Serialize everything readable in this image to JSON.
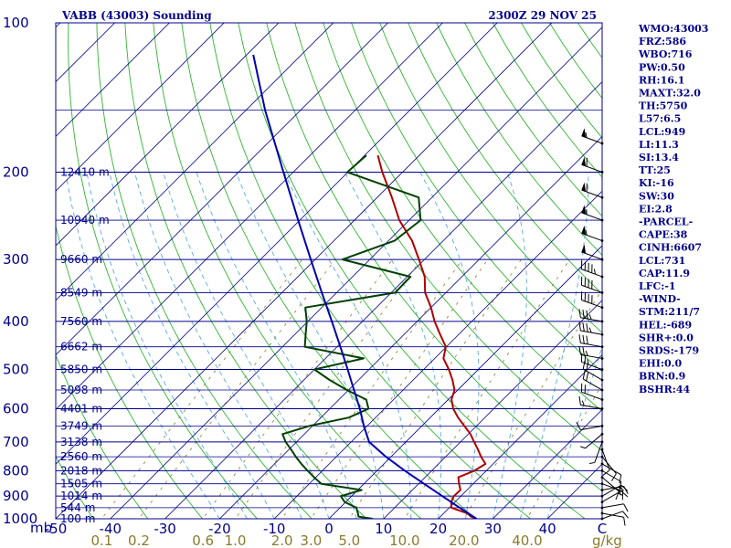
{
  "header": {
    "title": "VABB (43003) Sounding",
    "datetime": "2300Z 29 NOV 25"
  },
  "chart_data": {
    "type": "line",
    "title": "VABB (43003) Sounding",
    "pressure_unit": "mb",
    "pressure_axis": "log",
    "temperature_unit": "C",
    "mixing_ratio_unit": "g/kg",
    "temperature_range": [
      -50,
      50
    ],
    "pressure_range": [
      1000,
      100
    ],
    "pressure_ticks": [
      1000,
      900,
      800,
      700,
      600,
      500,
      400,
      300,
      200,
      100
    ],
    "pressure_tick_labels": [
      "1000",
      "900",
      "800",
      "700",
      "600",
      "500",
      "400",
      "300",
      "200",
      "100"
    ],
    "temperature_ticks": [
      -50,
      -40,
      -30,
      -20,
      -10,
      0,
      10,
      20,
      30,
      40
    ],
    "temperature_tick_labels": [
      "-50",
      "-40",
      "-30",
      "-20",
      "-10",
      "0",
      "10",
      "20",
      "30",
      "40"
    ],
    "mixing_ratio_ticks": [
      0.1,
      0.2,
      0.6,
      1.0,
      2.0,
      3.0,
      5.0,
      10.0,
      20.0,
      40.0
    ],
    "mixing_ratio_tick_labels": [
      "0.1",
      "0.2",
      "0.6",
      "1.0",
      "2.0",
      "3.0",
      "5.0",
      "10.0",
      "20.0",
      "40.0"
    ],
    "height_labels": [
      {
        "p": 1000,
        "label": "100 m"
      },
      {
        "p": 950,
        "label": "544 m"
      },
      {
        "p": 900,
        "label": "1014 m"
      },
      {
        "p": 850,
        "label": "1505 m"
      },
      {
        "p": 800,
        "label": "2018 m"
      },
      {
        "p": 750,
        "label": "2560 m"
      },
      {
        "p": 700,
        "label": "3138 m"
      },
      {
        "p": 650,
        "label": "3749 m"
      },
      {
        "p": 600,
        "label": "4401 m"
      },
      {
        "p": 550,
        "label": "5098 m"
      },
      {
        "p": 500,
        "label": "5850 m"
      },
      {
        "p": 450,
        "label": "6662 m"
      },
      {
        "p": 400,
        "label": "7560 m"
      },
      {
        "p": 350,
        "label": "8549 m"
      },
      {
        "p": 300,
        "label": "9660 m"
      },
      {
        "p": 250,
        "label": "10940 m"
      },
      {
        "p": 200,
        "label": "12410 m"
      }
    ],
    "series": [
      {
        "name": "Temperature",
        "color": "#b00000",
        "points": [
          {
            "p": 1000,
            "t": 27.0
          },
          {
            "p": 990,
            "t": 25.6
          },
          {
            "p": 975,
            "t": 24.3
          },
          {
            "p": 950,
            "t": 20.4
          },
          {
            "p": 925,
            "t": 19.3
          },
          {
            "p": 900,
            "t": 18.7
          },
          {
            "p": 875,
            "t": 18.8
          },
          {
            "p": 850,
            "t": 17.4
          },
          {
            "p": 825,
            "t": 16.1
          },
          {
            "p": 800,
            "t": 17.8
          },
          {
            "p": 775,
            "t": 18.6
          },
          {
            "p": 750,
            "t": 16.5
          },
          {
            "p": 725,
            "t": 14.6
          },
          {
            "p": 700,
            "t": 12.5
          },
          {
            "p": 675,
            "t": 10.4
          },
          {
            "p": 650,
            "t": 7.8
          },
          {
            "p": 625,
            "t": 5.1
          },
          {
            "p": 600,
            "t": 2.6
          },
          {
            "p": 575,
            "t": 0.6
          },
          {
            "p": 550,
            "t": -0.6
          },
          {
            "p": 525,
            "t": -2.8
          },
          {
            "p": 500,
            "t": -5.4
          },
          {
            "p": 475,
            "t": -8.4
          },
          {
            "p": 450,
            "t": -10.1
          },
          {
            "p": 425,
            "t": -13.4
          },
          {
            "p": 400,
            "t": -16.8
          },
          {
            "p": 375,
            "t": -20.0
          },
          {
            "p": 350,
            "t": -23.8
          },
          {
            "p": 325,
            "t": -26.8
          },
          {
            "p": 300,
            "t": -31.0
          },
          {
            "p": 275,
            "t": -35.7
          },
          {
            "p": 250,
            "t": -41.8
          },
          {
            "p": 225,
            "t": -47.3
          },
          {
            "p": 200,
            "t": -53.7
          },
          {
            "p": 185,
            "t": -57.6
          }
        ]
      },
      {
        "name": "Dewpoint",
        "color": "#004000",
        "points": [
          {
            "p": 1000,
            "t": 8.0
          },
          {
            "p": 990,
            "t": 5.0
          },
          {
            "p": 975,
            "t": 4.3
          },
          {
            "p": 950,
            "t": 3.0
          },
          {
            "p": 925,
            "t": -0.2
          },
          {
            "p": 900,
            "t": -2.0
          },
          {
            "p": 875,
            "t": 0.7
          },
          {
            "p": 850,
            "t": -7.8
          },
          {
            "p": 825,
            "t": -10.3
          },
          {
            "p": 800,
            "t": -12.7
          },
          {
            "p": 775,
            "t": -15.1
          },
          {
            "p": 750,
            "t": -17.4
          },
          {
            "p": 725,
            "t": -19.6
          },
          {
            "p": 700,
            "t": -22.0
          },
          {
            "p": 675,
            "t": -24.0
          },
          {
            "p": 650,
            "t": -20.6
          },
          {
            "p": 625,
            "t": -14.9
          },
          {
            "p": 600,
            "t": -12.9
          },
          {
            "p": 575,
            "t": -15.0
          },
          {
            "p": 550,
            "t": -20.3
          },
          {
            "p": 525,
            "t": -25.3
          },
          {
            "p": 500,
            "t": -30.0
          },
          {
            "p": 475,
            "t": -23.0
          },
          {
            "p": 450,
            "t": -35.9
          },
          {
            "p": 425,
            "t": -38.0
          },
          {
            "p": 400,
            "t": -40.2
          },
          {
            "p": 375,
            "t": -43.0
          },
          {
            "p": 350,
            "t": -29.3
          },
          {
            "p": 325,
            "t": -29.4
          },
          {
            "p": 300,
            "t": -45.0
          },
          {
            "p": 275,
            "t": -38.9
          },
          {
            "p": 250,
            "t": -37.9
          },
          {
            "p": 225,
            "t": -42.4
          },
          {
            "p": 200,
            "t": -60.1
          },
          {
            "p": 185,
            "t": -59.7
          }
        ]
      },
      {
        "name": "Parcel",
        "color": "#0000b0",
        "points": [
          {
            "p": 1000,
            "t": 27.0
          },
          {
            "p": 950,
            "t": 21.9
          },
          {
            "p": 900,
            "t": 16.6
          },
          {
            "p": 850,
            "t": 11.0
          },
          {
            "p": 800,
            "t": 5.1
          },
          {
            "p": 750,
            "t": -0.9
          },
          {
            "p": 700,
            "t": -6.7
          },
          {
            "p": 650,
            "t": -10.6
          },
          {
            "p": 600,
            "t": -14.5
          },
          {
            "p": 550,
            "t": -19.0
          },
          {
            "p": 500,
            "t": -23.9
          },
          {
            "p": 450,
            "t": -29.4
          },
          {
            "p": 400,
            "t": -35.6
          },
          {
            "p": 350,
            "t": -42.7
          },
          {
            "p": 300,
            "t": -50.8
          },
          {
            "p": 250,
            "t": -60.3
          },
          {
            "p": 200,
            "t": -71.8
          },
          {
            "p": 150,
            "t": -86.5
          },
          {
            "p": 116,
            "t": -98.8
          }
        ]
      }
    ],
    "wind_barbs": [
      {
        "p": 1000,
        "dir": 70,
        "spd": 10
      },
      {
        "p": 975,
        "dir": 100,
        "spd": 10
      },
      {
        "p": 950,
        "dir": 80,
        "spd": 10
      },
      {
        "p": 925,
        "dir": 60,
        "spd": 15
      },
      {
        "p": 900,
        "dir": 60,
        "spd": 15
      },
      {
        "p": 875,
        "dir": 80,
        "spd": 15
      },
      {
        "p": 850,
        "dir": 110,
        "spd": 15
      },
      {
        "p": 825,
        "dir": 130,
        "spd": 10
      },
      {
        "p": 800,
        "dir": 120,
        "spd": 10
      },
      {
        "p": 775,
        "dir": 120,
        "spd": 10
      },
      {
        "p": 750,
        "dir": 140,
        "spd": 10
      },
      {
        "p": 725,
        "dir": 160,
        "spd": 10
      },
      {
        "p": 700,
        "dir": 200,
        "spd": 5
      },
      {
        "p": 675,
        "dir": 230,
        "spd": 5
      },
      {
        "p": 650,
        "dir": 260,
        "spd": 10
      },
      {
        "p": 600,
        "dir": 280,
        "spd": 15
      },
      {
        "p": 575,
        "dir": 290,
        "spd": 20
      },
      {
        "p": 550,
        "dir": 300,
        "spd": 20
      },
      {
        "p": 525,
        "dir": 300,
        "spd": 20
      },
      {
        "p": 500,
        "dir": 290,
        "spd": 25
      },
      {
        "p": 475,
        "dir": 280,
        "spd": 25
      },
      {
        "p": 450,
        "dir": 280,
        "spd": 30
      },
      {
        "p": 425,
        "dir": 280,
        "spd": 35
      },
      {
        "p": 400,
        "dir": 280,
        "spd": 35
      },
      {
        "p": 375,
        "dir": 290,
        "spd": 40
      },
      {
        "p": 350,
        "dir": 290,
        "spd": 40
      },
      {
        "p": 325,
        "dir": 290,
        "spd": 45
      },
      {
        "p": 300,
        "dir": 290,
        "spd": 50
      },
      {
        "p": 275,
        "dir": 290,
        "spd": 55
      },
      {
        "p": 250,
        "dir": 290,
        "spd": 55
      },
      {
        "p": 225,
        "dir": 290,
        "spd": 60
      },
      {
        "p": 200,
        "dir": 290,
        "spd": 60
      },
      {
        "p": 175,
        "dir": 290,
        "spd": 55
      }
    ]
  },
  "indices": [
    "WMO:43003",
    "FRZ:586",
    "WBO:716",
    "PW:0.50",
    "RH:16.1",
    "MAXT:32.0",
    "TH:5750",
    "L57:6.5",
    "LCL:949",
    "LI:11.3",
    "SI:13.4",
    "TT:25",
    "KI:-16",
    "SW:30",
    "EI:2.8",
    "-PARCEL-",
    "CAPE:38",
    "CINH:6607",
    "LCL:731",
    "CAP:11.9",
    "LFC:-1",
    "-WIND-",
    "STM:211/7",
    "HEL:-689",
    "SHR+:0.0",
    "SRDS:-179",
    "EHI:0.0",
    "BRN:0.9",
    "BSHR:44"
  ],
  "colors": {
    "frame": "#00008b",
    "isobar": "#00008b",
    "isotherm": "#00008b",
    "dry_adiabat": "#2fb52f",
    "moist_adiabat": "#5aa9e6",
    "mixing_ratio": "#8b7a2a",
    "text": "#00008b",
    "mixing_ratio_text": "#8b7a2a"
  }
}
